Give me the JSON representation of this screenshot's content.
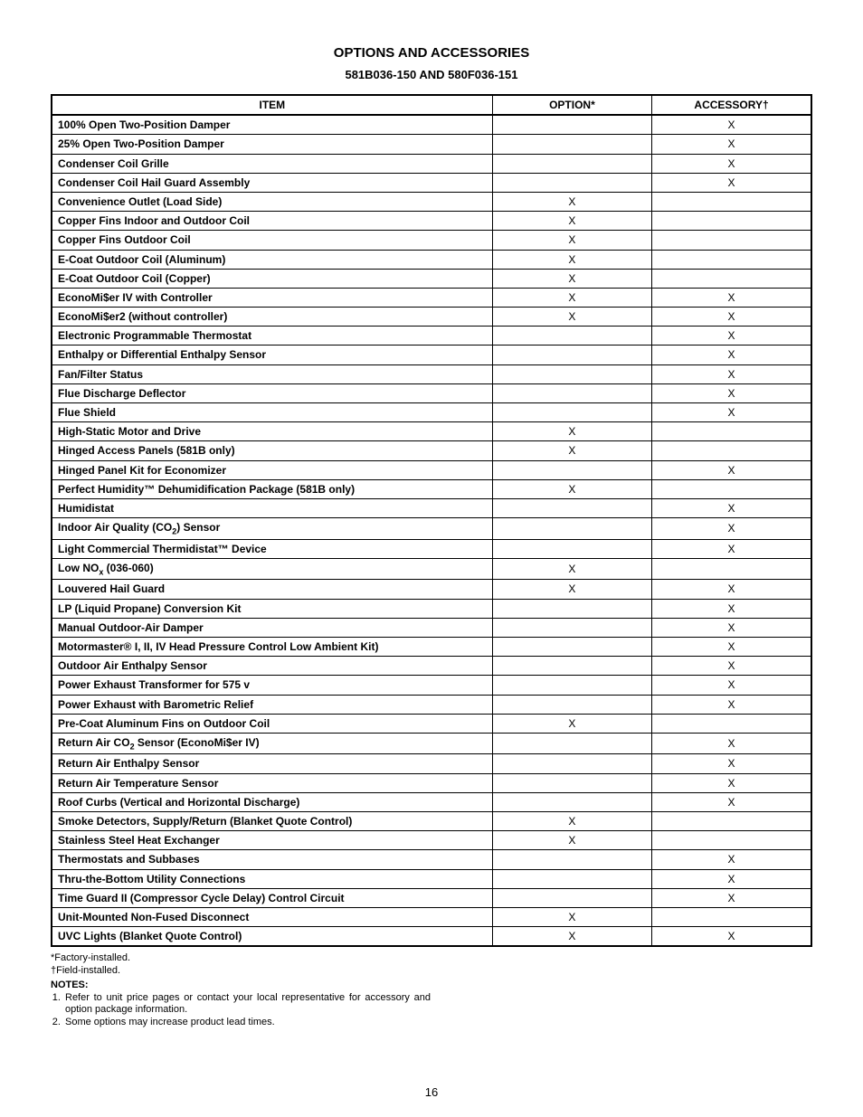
{
  "title": "OPTIONS AND ACCESSORIES",
  "subtitle": "581B036-150 AND 580F036-151",
  "headers": {
    "item": "ITEM",
    "option": "OPTION*",
    "accessory": "ACCESSORY†"
  },
  "rows": [
    {
      "item": "100% Open Two-Position Damper",
      "option": "",
      "accessory": "X"
    },
    {
      "item": "25% Open Two-Position Damper",
      "option": "",
      "accessory": "X"
    },
    {
      "item": "Condenser Coil Grille",
      "option": "",
      "accessory": "X"
    },
    {
      "item": "Condenser Coil Hail Guard Assembly",
      "option": "",
      "accessory": "X"
    },
    {
      "item": "Convenience Outlet (Load Side)",
      "option": "X",
      "accessory": ""
    },
    {
      "item": "Copper Fins Indoor and Outdoor Coil",
      "option": "X",
      "accessory": ""
    },
    {
      "item": "Copper Fins Outdoor Coil",
      "option": "X",
      "accessory": ""
    },
    {
      "item": "E-Coat Outdoor Coil (Aluminum)",
      "option": "X",
      "accessory": ""
    },
    {
      "item": "E-Coat Outdoor Coil (Copper)",
      "option": "X",
      "accessory": ""
    },
    {
      "item": "EconoMi$er IV with Controller",
      "option": "X",
      "accessory": "X"
    },
    {
      "item": "EconoMi$er2 (without controller)",
      "option": "X",
      "accessory": "X"
    },
    {
      "item": "Electronic Programmable Thermostat",
      "option": "",
      "accessory": "X"
    },
    {
      "item": "Enthalpy or Differential Enthalpy Sensor",
      "option": "",
      "accessory": "X"
    },
    {
      "item": "Fan/Filter Status",
      "option": "",
      "accessory": "X"
    },
    {
      "item": "Flue Discharge Deflector",
      "option": "",
      "accessory": "X"
    },
    {
      "item": "Flue Shield",
      "option": "",
      "accessory": "X"
    },
    {
      "item": "High-Static Motor and Drive",
      "option": "X",
      "accessory": ""
    },
    {
      "item": "Hinged Access Panels (581B only)",
      "option": "X",
      "accessory": ""
    },
    {
      "item": "Hinged Panel Kit for Economizer",
      "option": "",
      "accessory": "X"
    },
    {
      "item": "Perfect Humidity™ Dehumidification Package (581B only)",
      "option": "X",
      "accessory": ""
    },
    {
      "item": "Humidistat",
      "option": "",
      "accessory": "X"
    },
    {
      "item_html": "Indoor Air Quality (CO<span class=\"sub\">2</span>) Sensor",
      "option": "",
      "accessory": "X"
    },
    {
      "item": "Light Commercial Thermidistat™ Device",
      "option": "",
      "accessory": "X"
    },
    {
      "item_html": "Low NO<span class=\"sub\">x</span> (036-060)",
      "option": "X",
      "accessory": ""
    },
    {
      "item": "Louvered Hail Guard",
      "option": "X",
      "accessory": "X"
    },
    {
      "item": "LP (Liquid Propane) Conversion Kit",
      "option": "",
      "accessory": "X"
    },
    {
      "item": "Manual Outdoor-Air Damper",
      "option": "",
      "accessory": "X"
    },
    {
      "item": "Motormaster® I, II, IV Head Pressure Control Low Ambient Kit)",
      "option": "",
      "accessory": "X"
    },
    {
      "item": "Outdoor Air Enthalpy Sensor",
      "option": "",
      "accessory": "X"
    },
    {
      "item": "Power Exhaust Transformer for 575 v",
      "option": "",
      "accessory": "X"
    },
    {
      "item": "Power Exhaust with Barometric Relief",
      "option": "",
      "accessory": "X"
    },
    {
      "item": "Pre-Coat Aluminum Fins on Outdoor Coil",
      "option": "X",
      "accessory": ""
    },
    {
      "item_html": "Return Air CO<span class=\"sub\">2</span> Sensor (EconoMi$er IV)",
      "option": "",
      "accessory": "X"
    },
    {
      "item": "Return Air Enthalpy Sensor",
      "option": "",
      "accessory": "X"
    },
    {
      "item": "Return Air Temperature Sensor",
      "option": "",
      "accessory": "X"
    },
    {
      "item": "Roof Curbs (Vertical and Horizontal Discharge)",
      "option": "",
      "accessory": "X"
    },
    {
      "item": "Smoke Detectors, Supply/Return (Blanket Quote Control)",
      "option": "X",
      "accessory": ""
    },
    {
      "item": "Stainless Steel Heat Exchanger",
      "option": "X",
      "accessory": ""
    },
    {
      "item": "Thermostats and Subbases",
      "option": "",
      "accessory": "X"
    },
    {
      "item": "Thru-the-Bottom Utility Connections",
      "option": "",
      "accessory": "X"
    },
    {
      "item": "Time Guard II (Compressor Cycle Delay) Control Circuit",
      "option": "",
      "accessory": "X"
    },
    {
      "item": "Unit-Mounted Non-Fused Disconnect",
      "option": "X",
      "accessory": ""
    },
    {
      "item": "UVC Lights (Blanket Quote Control)",
      "option": "X",
      "accessory": "X"
    }
  ],
  "footnotes": {
    "star": "*Factory-installed.",
    "dagger": "†Field-installed.",
    "notes_label": "NOTES:",
    "notes": [
      "Refer to unit price pages or contact your local representative for accessory and option package information.",
      "Some options may increase product lead times."
    ]
  },
  "page_number": "16"
}
